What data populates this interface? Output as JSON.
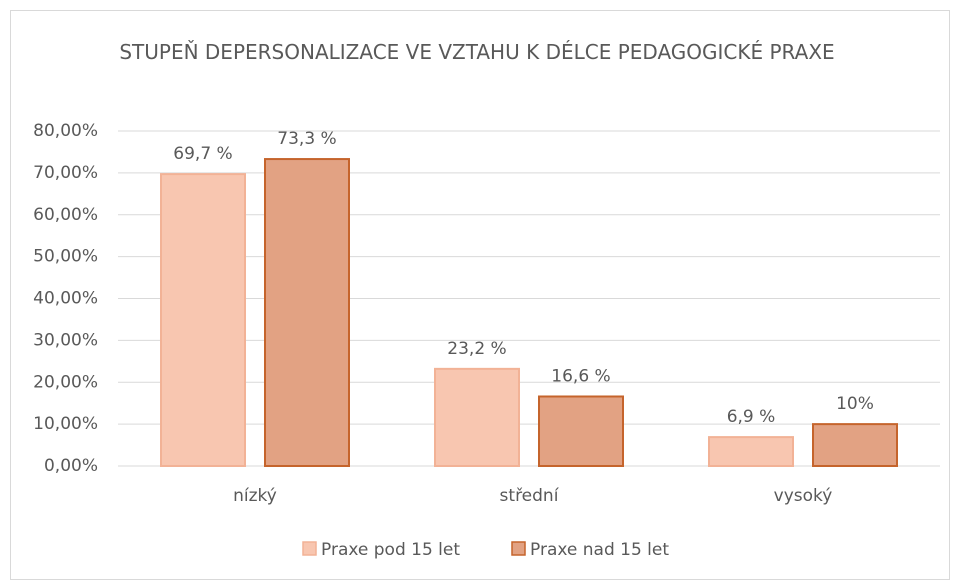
{
  "chart_data": {
    "type": "bar",
    "title": "STUPEŇ DEPERSONALIZACE VE VZTAHU K DÉLCE PEDAGOGICKÉ PRAXE",
    "categories": [
      "nízký",
      "střední",
      "vysoký"
    ],
    "series": [
      {
        "name": "Praxe pod 15 let",
        "color": "#f8c6b0",
        "edge_color": "#f2b296",
        "values": [
          69.7,
          23.2,
          6.9
        ],
        "value_labels": [
          "69,7 %",
          "23,2 %",
          "6,9 %"
        ]
      },
      {
        "name": "Praxe nad 15 let",
        "color": "#e2a283",
        "edge_color": "#c5642c",
        "values": [
          73.3,
          16.6,
          10
        ],
        "value_labels": [
          "73,3 %",
          "16,6 %",
          "10%"
        ]
      }
    ],
    "ylim": [
      0,
      80
    ],
    "yticks": [
      {
        "value": 0,
        "label": "0,00%"
      },
      {
        "value": 10,
        "label": "10,00%"
      },
      {
        "value": 20,
        "label": "20,00%"
      },
      {
        "value": 30,
        "label": "30,00%"
      },
      {
        "value": 40,
        "label": "40,00%"
      },
      {
        "value": 50,
        "label": "50,00%"
      },
      {
        "value": 60,
        "label": "60,00%"
      },
      {
        "value": 70,
        "label": "70,00%"
      },
      {
        "value": 80,
        "label": "80,00%"
      }
    ],
    "grid": true,
    "legend": "bottom"
  }
}
